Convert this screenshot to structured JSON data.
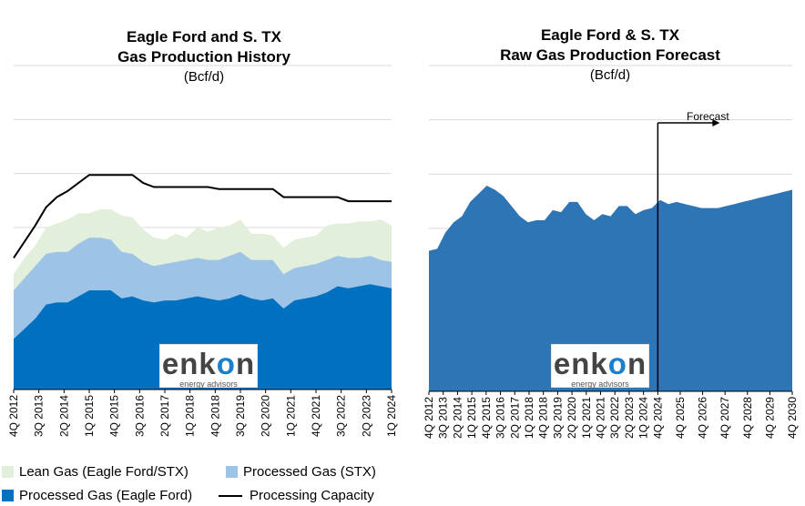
{
  "left_chart": {
    "title_line1": "Eagle Ford and S. TX",
    "title_line2": "Gas Production History",
    "subtitle": "(Bcf/d)"
  },
  "right_chart": {
    "title_line1": "Eagle Ford & S. TX",
    "title_line2": "Raw Gas Production Forecast",
    "subtitle": "(Bcf/d)",
    "forecast_label": "Forecast"
  },
  "logo": {
    "word_a": "enk",
    "word_o": "o",
    "word_b": "n",
    "tagline": "energy advisors"
  },
  "legend": {
    "lean": "Lean Gas (Eagle Ford/STX)",
    "proc_stx": "Processed Gas (STX)",
    "proc_ef": "Processed Gas (Eagle Ford)",
    "capacity": "Processing Capacity"
  },
  "colors": {
    "lean": "#e2efda",
    "proc_stx": "#9dc3e6",
    "proc_ef": "#0070c0",
    "forecast": "#2e75b6",
    "capacity": "#000000"
  },
  "chart_data": [
    {
      "type": "area",
      "title": "Eagle Ford and S. TX Gas Production History",
      "subtitle": "(Bcf/d)",
      "x_ticks": [
        "4Q 2012",
        "3Q 2013",
        "2Q 2014",
        "1Q 2015",
        "4Q 2015",
        "3Q 2016",
        "2Q 2017",
        "1Q 2018",
        "4Q 2018",
        "3Q 2019",
        "2Q 2020",
        "1Q 2021",
        "4Q 2021",
        "3Q 2022",
        "2Q 2023",
        "1Q 2024"
      ],
      "grid": true,
      "series": [
        {
          "name": "Processed Gas (Eagle Ford)",
          "stack": "stacked",
          "values": [
            2.5,
            3.0,
            3.5,
            4.2,
            4.3,
            4.3,
            4.6,
            4.9,
            4.9,
            4.9,
            4.5,
            4.6,
            4.4,
            4.3,
            4.4,
            4.4,
            4.5,
            4.6,
            4.5,
            4.4,
            4.5,
            4.7,
            4.5,
            4.4,
            4.5,
            4.0,
            4.4,
            4.5,
            4.6,
            4.8,
            5.1,
            5.0,
            5.1,
            5.2,
            5.1,
            5.0
          ]
        },
        {
          "name": "Processed Gas (STX)",
          "stack": "stacked",
          "values": [
            2.4,
            2.5,
            2.6,
            2.5,
            2.5,
            2.5,
            2.6,
            2.6,
            2.6,
            2.5,
            2.3,
            2.1,
            1.9,
            1.8,
            1.8,
            1.9,
            1.9,
            1.9,
            1.9,
            2.0,
            2.1,
            2.1,
            1.9,
            2.0,
            1.9,
            1.7,
            1.6,
            1.6,
            1.6,
            1.6,
            1.5,
            1.5,
            1.4,
            1.4,
            1.3,
            1.3
          ]
        },
        {
          "name": "Lean Gas (Eagle Ford/STX)",
          "stack": "stacked",
          "values": [
            0.8,
            1.0,
            1.0,
            1.3,
            1.4,
            1.6,
            1.5,
            1.2,
            1.4,
            1.5,
            1.8,
            1.8,
            1.6,
            1.4,
            1.2,
            1.4,
            1.1,
            1.5,
            1.4,
            1.6,
            1.5,
            1.6,
            1.3,
            1.3,
            1.2,
            1.3,
            1.4,
            1.4,
            1.4,
            1.7,
            1.6,
            1.7,
            1.8,
            1.7,
            2.0,
            1.8
          ]
        },
        {
          "name": "Processing Capacity",
          "values": [
            6.5,
            7.3,
            8.1,
            9.0,
            9.5,
            9.8,
            10.2,
            10.6,
            10.6,
            10.6,
            10.6,
            10.6,
            10.2,
            10.0,
            10.0,
            10.0,
            10.0,
            10.0,
            10.0,
            9.9,
            9.9,
            9.9,
            9.9,
            9.9,
            9.9,
            9.5,
            9.5,
            9.5,
            9.5,
            9.5,
            9.5,
            9.3,
            9.3,
            9.3,
            9.3,
            9.3
          ]
        }
      ]
    },
    {
      "type": "area",
      "title": "Eagle Ford & S. TX Raw Gas Production Forecast",
      "subtitle": "(Bcf/d)",
      "x_ticks": [
        "4Q 2012",
        "3Q 2013",
        "2Q 2014",
        "1Q 2015",
        "4Q 2015",
        "3Q 2016",
        "2Q 2017",
        "1Q 2018",
        "4Q 2018",
        "3Q 2019",
        "2Q 2020",
        "1Q 2021",
        "4Q 2021",
        "3Q 2022",
        "2Q 2023",
        "1Q 2024",
        "4Q 2024",
        "4Q 2025",
        "4Q 2026",
        "4Q 2027",
        "4Q 2028",
        "4Q 2029",
        "4Q 2030"
      ],
      "forecast_start": "4Q 2024",
      "annotation": "Forecast",
      "grid": true,
      "series": [
        {
          "name": "Raw Gas Production",
          "values": [
            6.9,
            7.0,
            7.8,
            8.3,
            8.6,
            9.3,
            9.7,
            10.1,
            9.9,
            9.6,
            9.1,
            8.6,
            8.3,
            8.4,
            8.4,
            8.9,
            8.8,
            9.3,
            9.3,
            8.7,
            8.4,
            8.7,
            8.6,
            9.1,
            9.1,
            8.7,
            8.9,
            9.0,
            9.4,
            9.2,
            9.3,
            9.2,
            9.1,
            9.0,
            9.0,
            9.0,
            9.1,
            9.2,
            9.3,
            9.4,
            9.5,
            9.6,
            9.7,
            9.8,
            9.9
          ]
        }
      ]
    }
  ]
}
